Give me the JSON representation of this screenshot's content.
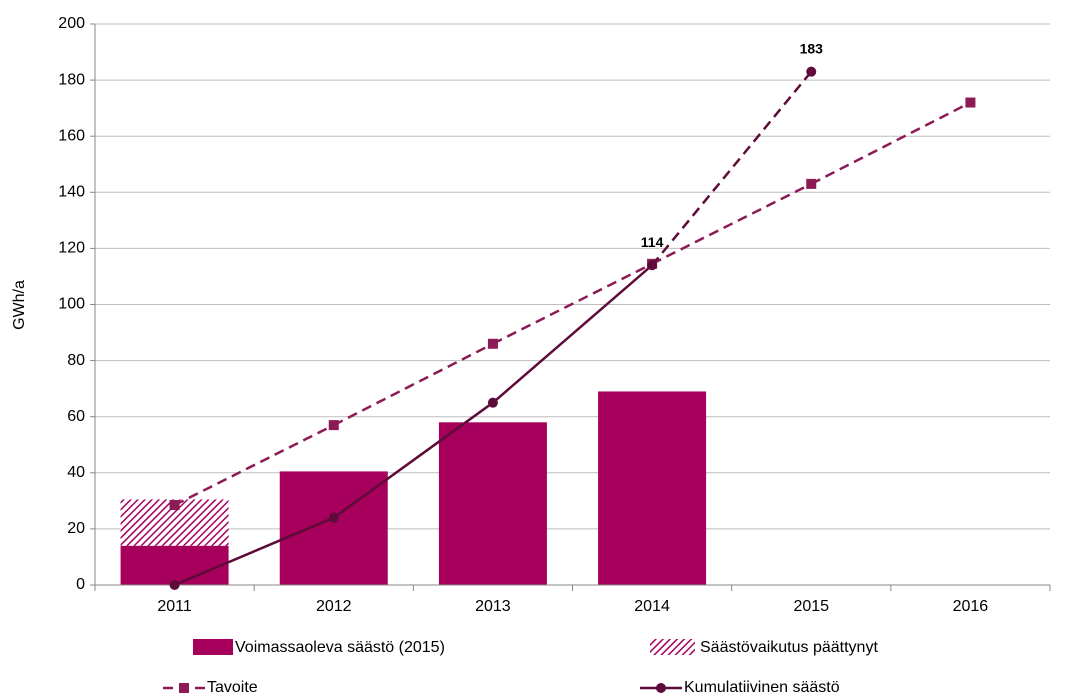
{
  "chart_data": {
    "type": "bar",
    "categories": [
      "2011",
      "2012",
      "2013",
      "2014",
      "2015",
      "2016"
    ],
    "y_label": "GWh/a",
    "ylim": [
      0,
      200
    ],
    "yticks": [
      0,
      20,
      40,
      60,
      80,
      100,
      120,
      140,
      160,
      180,
      200
    ],
    "grid": true,
    "series": [
      {
        "name": "Voimassaoleva säästö (2015)",
        "type": "bar",
        "color": "#a6005c",
        "values": [
          14,
          40.5,
          58,
          69,
          null,
          null
        ]
      },
      {
        "name": "Säästövaikutus päättynyt",
        "type": "bar",
        "pattern": "hatch",
        "color": "#a6005c",
        "values": [
          16.5,
          null,
          null,
          null,
          null,
          null
        ]
      },
      {
        "name": "Tavoite",
        "type": "line",
        "dash": true,
        "marker": "square",
        "color": "#8c1a55",
        "values": [
          28.5,
          57,
          86,
          114.5,
          143,
          172
        ]
      },
      {
        "name": "Kumulatiivinen säästö",
        "type": "line",
        "dash": false,
        "marker": "circle",
        "color": "#5e0b3a",
        "dashed_segments": [
          3
        ],
        "values": [
          0,
          24,
          65,
          114,
          183,
          null
        ],
        "value_labels": [
          null,
          null,
          null,
          "114",
          "183",
          null
        ]
      }
    ]
  }
}
